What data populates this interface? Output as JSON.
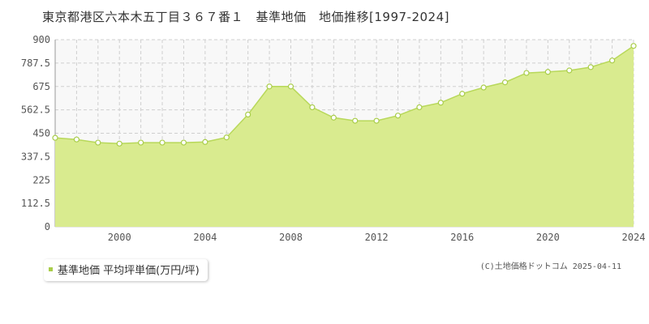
{
  "title": "東京都港区六本木五丁目３６７番１　基準地価　地価推移[1997-2024]",
  "legend": {
    "label": "基準地価 平均坪単価(万円/坪)"
  },
  "copyright": "(C)土地価格ドットコム 2025-04-11",
  "colors": {
    "fill": "#d9eb8f",
    "line": "#b8d85a",
    "marker_fill": "#ffffff",
    "marker_stroke": "#a9cd4a",
    "plot_bg": "#f8f8f8",
    "grid": "#cfcfcf",
    "legend_swatch": "#a9cd4a"
  },
  "chart_data": {
    "type": "area",
    "x": [
      1997,
      1998,
      1999,
      2000,
      2001,
      2002,
      2003,
      2004,
      2005,
      2006,
      2007,
      2008,
      2009,
      2010,
      2011,
      2012,
      2013,
      2014,
      2015,
      2016,
      2017,
      2018,
      2019,
      2020,
      2021,
      2022,
      2023,
      2024
    ],
    "series": [
      {
        "name": "基準地価 平均坪単価(万円/坪)",
        "values": [
          428,
          420,
          405,
          400,
          405,
          405,
          405,
          408,
          430,
          540,
          675,
          675,
          575,
          525,
          510,
          510,
          535,
          575,
          597,
          640,
          670,
          695,
          740,
          745,
          752,
          768,
          800,
          870
        ]
      }
    ],
    "xlim": [
      1997,
      2024
    ],
    "ylim": [
      0,
      900
    ],
    "xticks": [
      "2000",
      "2004",
      "2008",
      "2012",
      "2016",
      "2020",
      "2024"
    ],
    "yticks": [
      "0",
      "112.5",
      "225",
      "337.5",
      "450",
      "562.5",
      "675",
      "787.5",
      "900"
    ],
    "grid": true
  }
}
